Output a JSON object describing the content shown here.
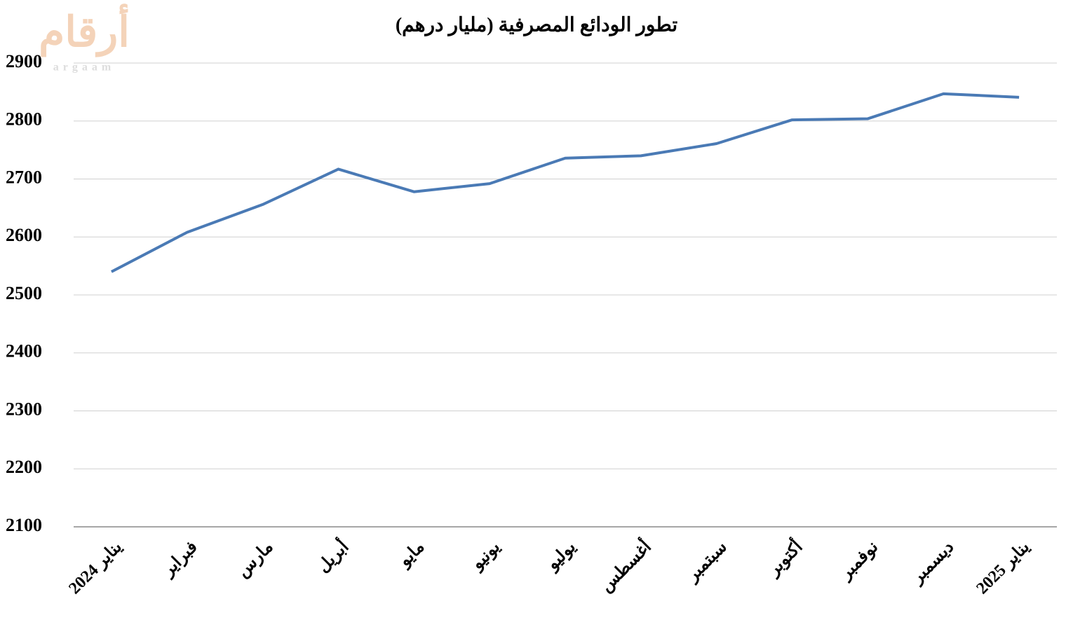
{
  "chart_data": {
    "type": "line",
    "title": "تطور الودائع المصرفية (مليار درهم)",
    "watermark": "أرقام",
    "watermark_sub": "argaam",
    "categories": [
      "يناير 2024",
      "فبراير",
      "مارس",
      "أبريل",
      "مايو",
      "يونيو",
      "يوليو",
      "أغسطس",
      "سبتمبر",
      "أكتوبر",
      "نوفمبر",
      "ديسمبر",
      "يناير 2025"
    ],
    "series": [
      {
        "color": "#4a7ab5",
        "values": [
          2540,
          2608,
          2656,
          2717,
          2678,
          2692,
          2736,
          2740,
          2761,
          2802,
          2804,
          2847,
          2841
        ]
      }
    ],
    "ylim": [
      2100,
      2900
    ],
    "yticks": [
      2100,
      2200,
      2300,
      2400,
      2500,
      2600,
      2700,
      2800,
      2900
    ],
    "grid": true
  }
}
